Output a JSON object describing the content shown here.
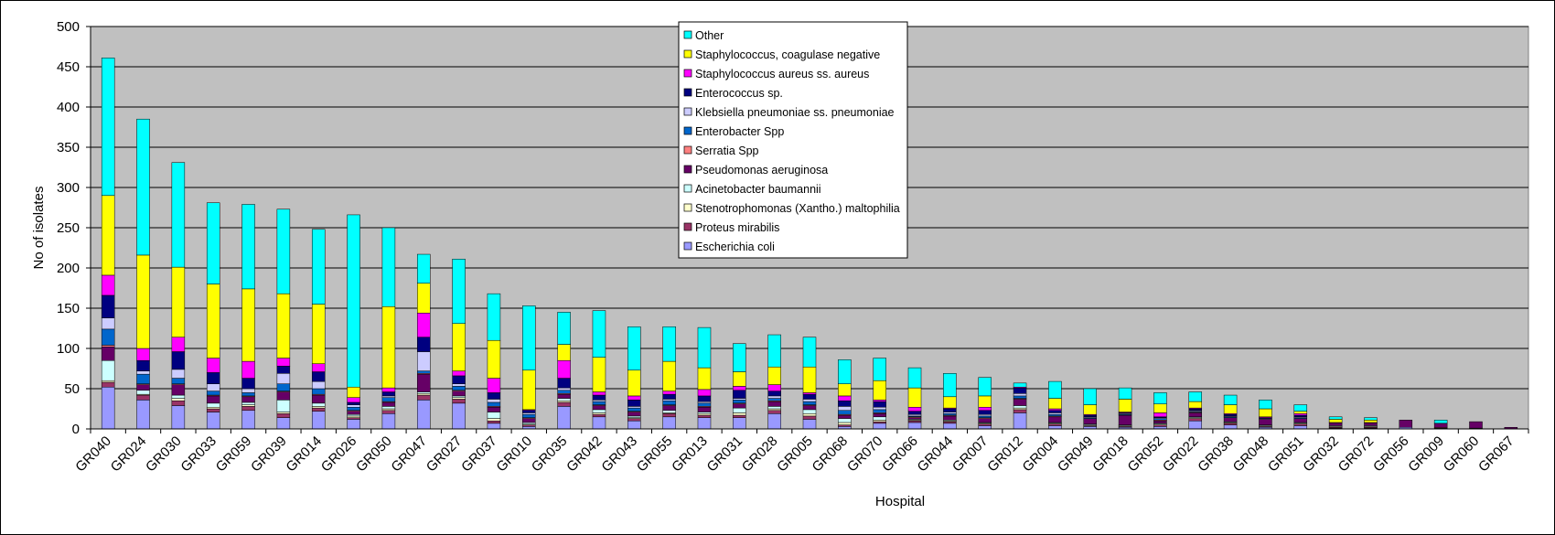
{
  "chart_data": {
    "type": "bar",
    "stacked": true,
    "title": "",
    "xlabel": "Hospital",
    "ylabel": "No of isolates",
    "ylim": [
      0,
      500
    ],
    "yticks": [
      0,
      50,
      100,
      150,
      200,
      250,
      300,
      350,
      400,
      450,
      500
    ],
    "grid": true,
    "legend_position": "top-center",
    "plot_background": "#C0C0C0",
    "categories": [
      "GR040",
      "GR024",
      "GR030",
      "GR033",
      "GR059",
      "GR039",
      "GR014",
      "GR026",
      "GR050",
      "GR047",
      "GR027",
      "GR037",
      "GR010",
      "GR035",
      "GR042",
      "GR043",
      "GR055",
      "GR013",
      "GR031",
      "GR028",
      "GR005",
      "GR068",
      "GR070",
      "GR066",
      "GR044",
      "GR007",
      "GR012",
      "GR004",
      "GR049",
      "GR018",
      "GR052",
      "GR022",
      "GR038",
      "GR048",
      "GR051",
      "GR032",
      "GR072",
      "GR056",
      "GR009",
      "GR060",
      "GR067"
    ],
    "series": [
      {
        "name": "Escherichia coli",
        "color": "#9999FF",
        "values": [
          52,
          36,
          29,
          21,
          23,
          14,
          22,
          12,
          19,
          36,
          32,
          7,
          3,
          28,
          15,
          10,
          15,
          14,
          14,
          19,
          12,
          3,
          7,
          8,
          7,
          4,
          20,
          4,
          3,
          2,
          3,
          10,
          5,
          2,
          4,
          1,
          1,
          2,
          1,
          1,
          0
        ]
      },
      {
        "name": "Proteus mirabilis",
        "color": "#993366",
        "values": [
          6,
          6,
          6,
          4,
          5,
          5,
          4,
          2,
          4,
          6,
          5,
          3,
          2,
          5,
          3,
          3,
          4,
          3,
          3,
          4,
          4,
          2,
          2,
          2,
          2,
          2,
          4,
          2,
          1,
          1,
          2,
          3,
          2,
          1,
          2,
          1,
          1,
          0,
          1,
          0,
          0
        ]
      },
      {
        "name": "Stenotrophomonas (Xantho.) maltophilia",
        "color": "#FFFFCC",
        "values": [
          2,
          1,
          3,
          2,
          2,
          2,
          2,
          2,
          2,
          2,
          2,
          3,
          1,
          2,
          2,
          1,
          1,
          2,
          3,
          2,
          3,
          3,
          2,
          1,
          1,
          1,
          2,
          1,
          1,
          1,
          1,
          1,
          1,
          1,
          1,
          1,
          1,
          0,
          0,
          0,
          0
        ]
      },
      {
        "name": "Acinetobacter baumannii",
        "color": "#CCFFFF",
        "values": [
          25,
          5,
          4,
          5,
          3,
          15,
          4,
          2,
          3,
          2,
          2,
          8,
          2,
          3,
          4,
          2,
          3,
          2,
          6,
          3,
          5,
          5,
          4,
          1,
          1,
          1,
          3,
          1,
          1,
          1,
          1,
          1,
          1,
          1,
          1,
          1,
          1,
          0,
          0,
          0,
          0
        ]
      },
      {
        "name": "Pseudomonas aeruginosa",
        "color": "#660066",
        "values": [
          17,
          7,
          13,
          9,
          7,
          10,
          10,
          4,
          5,
          22,
          6,
          6,
          5,
          5,
          5,
          5,
          6,
          6,
          5,
          6,
          5,
          4,
          4,
          2,
          5,
          5,
          8,
          7,
          7,
          12,
          3,
          5,
          5,
          7,
          5,
          3,
          3,
          9,
          4,
          8,
          2
        ]
      },
      {
        "name": "Serratia Spp",
        "color": "#FF8080",
        "values": [
          2,
          1,
          1,
          1,
          1,
          1,
          1,
          1,
          1,
          1,
          1,
          1,
          1,
          1,
          1,
          1,
          1,
          1,
          1,
          1,
          1,
          1,
          1,
          1,
          1,
          1,
          1,
          1,
          0,
          0,
          1,
          1,
          0,
          0,
          0,
          0,
          0,
          0,
          0,
          0,
          0
        ]
      },
      {
        "name": "Enterobacter Spp",
        "color": "#0066CC",
        "values": [
          20,
          12,
          7,
          5,
          4,
          9,
          7,
          4,
          5,
          3,
          5,
          5,
          4,
          4,
          4,
          4,
          5,
          4,
          4,
          3,
          4,
          5,
          4,
          1,
          2,
          2,
          3,
          2,
          1,
          1,
          2,
          1,
          1,
          0,
          1,
          0,
          0,
          0,
          0,
          0,
          0
        ]
      },
      {
        "name": "Klebsiella pneumoniae ss. pneumoniae",
        "color": "#CCCCFF",
        "values": [
          14,
          4,
          11,
          9,
          5,
          13,
          9,
          3,
          2,
          24,
          3,
          4,
          2,
          3,
          2,
          2,
          2,
          2,
          2,
          3,
          3,
          5,
          3,
          2,
          2,
          2,
          3,
          2,
          1,
          1,
          1,
          1,
          1,
          1,
          1,
          0,
          0,
          0,
          0,
          0,
          0
        ]
      },
      {
        "name": "Enterococcus sp.",
        "color": "#000080",
        "values": [
          28,
          13,
          22,
          14,
          13,
          9,
          12,
          3,
          5,
          18,
          10,
          8,
          3,
          12,
          6,
          8,
          6,
          7,
          10,
          6,
          6,
          7,
          7,
          4,
          4,
          5,
          7,
          3,
          2,
          1,
          1,
          2,
          2,
          1,
          2,
          0,
          0,
          0,
          0,
          0,
          0
        ]
      },
      {
        "name": "Staphylococcus aureus ss. aureus",
        "color": "#FF00FF",
        "values": [
          25,
          15,
          18,
          18,
          21,
          10,
          10,
          6,
          5,
          30,
          6,
          18,
          1,
          22,
          4,
          5,
          4,
          8,
          5,
          8,
          2,
          6,
          2,
          5,
          1,
          4,
          1,
          2,
          1,
          1,
          5,
          1,
          1,
          1,
          2,
          1,
          1,
          0,
          1,
          0,
          0
        ]
      },
      {
        "name": "Staphylococcus, coagulase negative",
        "color": "#FFFF00",
        "values": [
          99,
          116,
          87,
          92,
          90,
          80,
          74,
          13,
          101,
          37,
          59,
          47,
          49,
          20,
          43,
          32,
          37,
          27,
          18,
          22,
          32,
          15,
          24,
          24,
          14,
          14,
          0,
          13,
          12,
          16,
          11,
          8,
          11,
          10,
          3,
          4,
          3,
          0,
          0,
          0,
          0
        ]
      },
      {
        "name": "Other",
        "color": "#00FFFF",
        "values": [
          171,
          169,
          130,
          101,
          105,
          105,
          93,
          214,
          98,
          36,
          80,
          58,
          80,
          40,
          58,
          54,
          43,
          50,
          35,
          40,
          37,
          30,
          28,
          25,
          29,
          23,
          5,
          21,
          20,
          14,
          14,
          12,
          12,
          11,
          8,
          3,
          3,
          0,
          4,
          0,
          0
        ]
      }
    ]
  }
}
